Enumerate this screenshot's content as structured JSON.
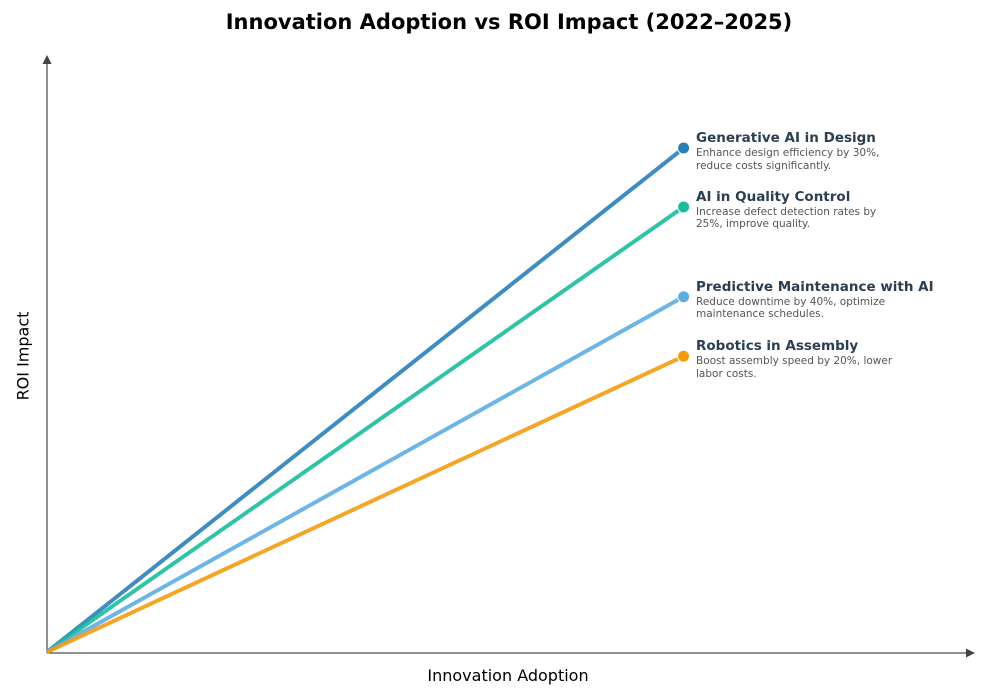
{
  "chart_data": {
    "type": "line",
    "title": "Innovation Adoption vs ROI Impact (2022–2025)",
    "xlabel": "Innovation Adoption",
    "ylabel": "ROI Impact",
    "xlim": [
      0,
      1
    ],
    "ylim": [
      0,
      1
    ],
    "grid": false,
    "ticks": false,
    "series": [
      {
        "name": "Generative AI in Design",
        "description": "Enhance design efficiency by 30%, reduce costs significantly.",
        "color": "#2980b9",
        "x": [
          0,
          0.686
        ],
        "y": [
          0,
          0.847
        ]
      },
      {
        "name": "AI in Quality Control",
        "description": "Increase defect detection rates by 25%, improve quality.",
        "color": "#1abc9c",
        "x": [
          0,
          0.686
        ],
        "y": [
          0,
          0.748
        ]
      },
      {
        "name": "Predictive Maintenance with AI",
        "description": "Reduce downtime by 40%, optimize maintenance schedules.",
        "color": "#5dade2",
        "x": [
          0,
          0.686
        ],
        "y": [
          0,
          0.597
        ]
      },
      {
        "name": "Robotics in Assembly",
        "description": "Boost assembly speed by 20%, lower labor costs.",
        "color": "#f39c12",
        "x": [
          0,
          0.686
        ],
        "y": [
          0,
          0.497
        ]
      }
    ]
  }
}
